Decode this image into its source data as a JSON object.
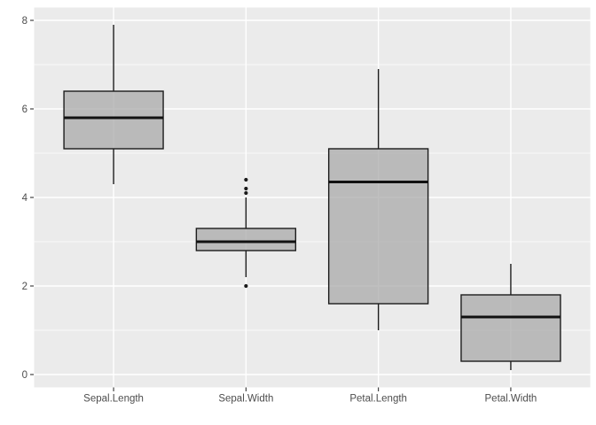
{
  "figure": {
    "kind": "ggplot2-style boxplot figure",
    "title": ""
  },
  "chart_data": {
    "type": "boxplot",
    "title": "",
    "xlabel": "",
    "ylabel": "",
    "categories": [
      "Sepal.Length",
      "Sepal.Width",
      "Petal.Length",
      "Petal.Width"
    ],
    "series": [
      {
        "name": "Sepal.Length",
        "whisker_low": 4.3,
        "q1": 5.1,
        "median": 5.8,
        "q3": 6.4,
        "whisker_high": 7.9,
        "outliers": []
      },
      {
        "name": "Sepal.Width",
        "whisker_low": 2.2,
        "q1": 2.8,
        "median": 3.0,
        "q3": 3.3,
        "whisker_high": 4.0,
        "outliers": [
          4.4,
          4.2,
          4.1,
          2.0
        ]
      },
      {
        "name": "Petal.Length",
        "whisker_low": 1.0,
        "q1": 1.6,
        "median": 4.35,
        "q3": 5.1,
        "whisker_high": 6.9,
        "outliers": []
      },
      {
        "name": "Petal.Width",
        "whisker_low": 0.1,
        "q1": 0.3,
        "median": 1.3,
        "q3": 1.8,
        "whisker_high": 2.5,
        "outliers": []
      }
    ],
    "y_axis": {
      "ticks": [
        0,
        2,
        4,
        6,
        8
      ],
      "minor_ticks": [
        1,
        3,
        5,
        7
      ],
      "limits": [
        -0.29,
        8.29
      ]
    },
    "x_axis": {
      "tick_labels": [
        "Sepal.Length",
        "Sepal.Width",
        "Petal.Length",
        "Petal.Width"
      ]
    },
    "grid": "major+minor",
    "legend_position": "none",
    "box_rel_width": 0.75
  },
  "style": {
    "page_bg": "#FFFFFF",
    "panel_bg": "#EBEBEB",
    "grid_major_color": "#FFFFFF",
    "grid_minor_color": "#FFFFFF",
    "box_fill": "rgba(166,166,166,0.72)",
    "box_stroke": "#1C1C1C",
    "median_stroke": "#111111",
    "outlier_color": "#1A1A1A",
    "axis_text_color": "#4D4D4D",
    "tick_mark_color": "#333333"
  }
}
